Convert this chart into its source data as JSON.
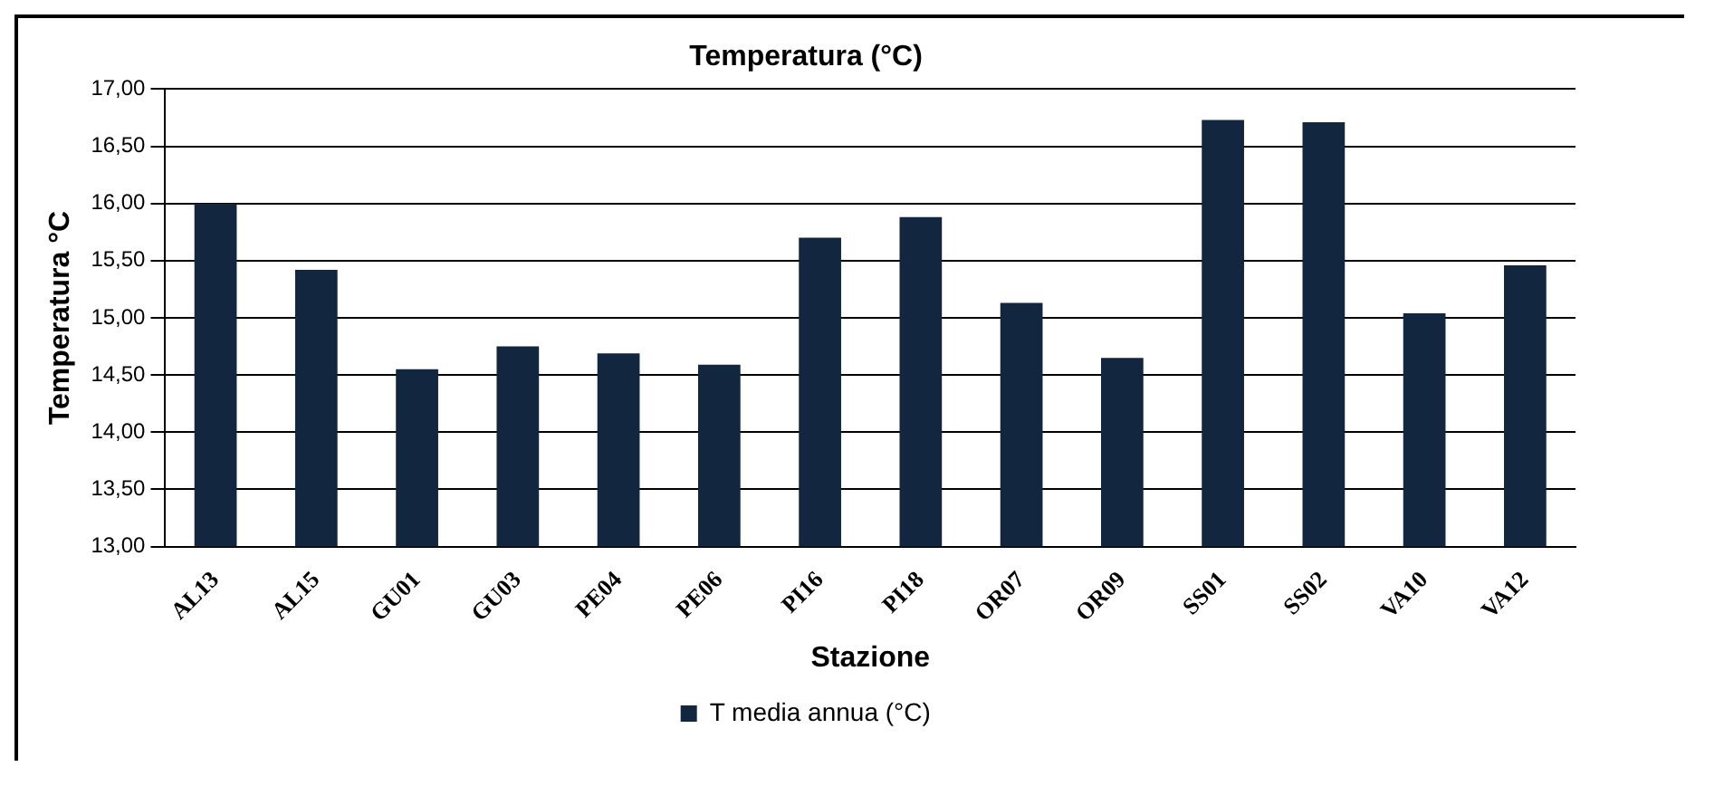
{
  "chart_data": {
    "type": "bar",
    "title": "Temperatura (°C)",
    "xlabel": "Stazione",
    "ylabel": "Temperatura °C",
    "categories": [
      "AL13",
      "AL15",
      "GU01",
      "GU03",
      "PE04",
      "PE06",
      "PI16",
      "PI18",
      "OR07",
      "OR09",
      "SS01",
      "SS02",
      "VA10",
      "VA12"
    ],
    "series": [
      {
        "name": "T media annua (°C)",
        "color": "#13263f",
        "values": [
          16.0,
          15.42,
          14.55,
          14.75,
          14.69,
          14.59,
          15.7,
          15.88,
          15.13,
          14.65,
          16.73,
          16.71,
          15.04,
          15.46
        ]
      }
    ],
    "ylim": [
      13,
      17
    ],
    "yticks": [
      {
        "value": 13,
        "label": "13,00"
      },
      {
        "value": 13.5,
        "label": "13,50"
      },
      {
        "value": 14,
        "label": "14,00"
      },
      {
        "value": 14.5,
        "label": "14,50"
      },
      {
        "value": 15,
        "label": "15,00"
      },
      {
        "value": 15.5,
        "label": "15,50"
      },
      {
        "value": 16,
        "label": "16,00"
      },
      {
        "value": 16.5,
        "label": "16,50"
      },
      {
        "value": 17,
        "label": "17,00"
      }
    ],
    "grid": "y",
    "legend": "bottom"
  }
}
